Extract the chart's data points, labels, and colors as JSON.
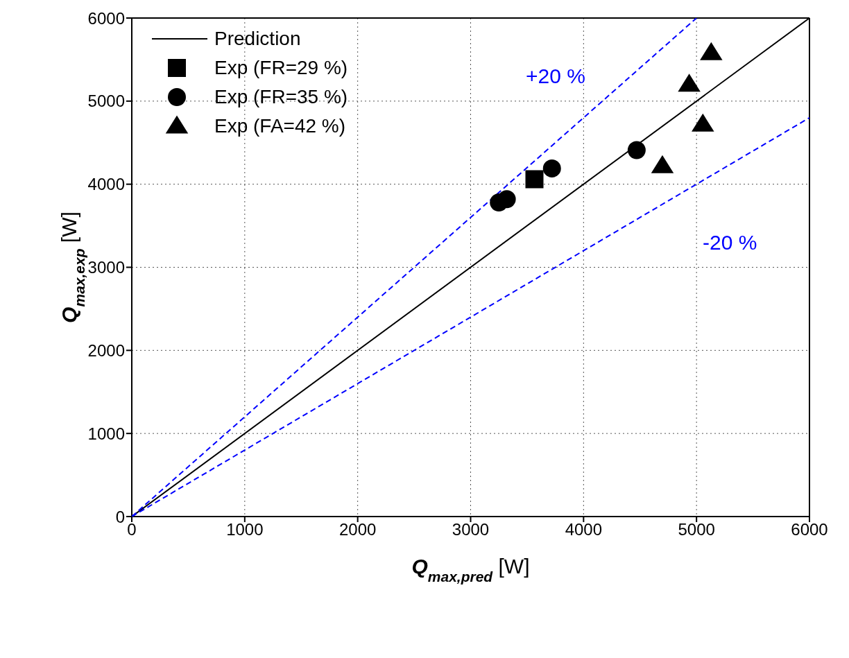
{
  "chart_data": {
    "type": "scatter",
    "xlabel": "Q$_{max,pred}$ [W]",
    "ylabel": "Q$_{max,exp}$ [W]",
    "xlim": [
      0,
      6000
    ],
    "ylim": [
      0,
      6000
    ],
    "xticks": [
      0,
      1000,
      2000,
      3000,
      4000,
      5000,
      6000
    ],
    "yticks": [
      0,
      1000,
      2000,
      3000,
      4000,
      5000,
      6000
    ],
    "grid": true,
    "legend": "top left",
    "series": [
      {
        "name": "Prediction",
        "type": "line",
        "color": "#000000",
        "line_style": "solid",
        "marker": "none",
        "x": [
          0,
          6000
        ],
        "values": [
          0,
          6000
        ]
      },
      {
        "type": "line",
        "color": "#0000ff",
        "line_style": "dashed",
        "marker": "none",
        "x": [
          0,
          5000
        ],
        "values": [
          0,
          6000
        ]
      },
      {
        "type": "line",
        "color": "#0000ff",
        "line_style": "dashed",
        "marker": "none",
        "x": [
          0,
          6000
        ],
        "values": [
          0,
          4800
        ]
      },
      {
        "name": "Exp (FR=29 %)",
        "type": "scatter",
        "color": "#000000",
        "marker": "square",
        "x": [
          3565
        ],
        "values": [
          4060
        ]
      },
      {
        "name": "Exp (FR=35 %)",
        "type": "scatter",
        "color": "#000000",
        "marker": "circle",
        "x": [
          3250,
          3320,
          3720,
          4470
        ],
        "values": [
          3780,
          3820,
          4190,
          4410
        ]
      },
      {
        "name": "Exp (FA=42 %)",
        "type": "scatter",
        "color": "#000000",
        "marker": "triangle",
        "x": [
          4698,
          5056,
          4935,
          5130
        ],
        "values": [
          4220,
          4720,
          5200,
          5580
        ]
      }
    ],
    "annotations": [
      "+20 %",
      "-20 %"
    ]
  }
}
